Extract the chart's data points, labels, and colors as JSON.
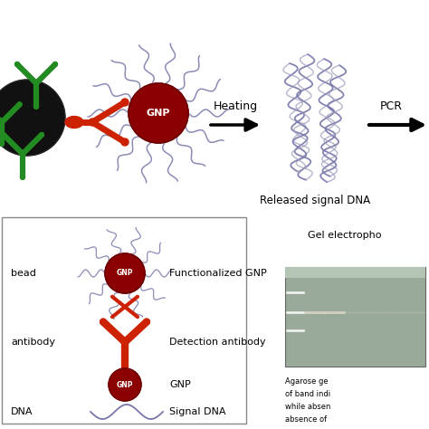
{
  "bg_color": "#ffffff",
  "heating_label": "Heating",
  "pcr_label": "PCR",
  "released_dna_label": "Released signal DNA",
  "gel_label": "Gel electropho",
  "agarose_lines": [
    "Agarose ge",
    "of band indi",
    "while absen",
    "absence of"
  ],
  "legend_left_labels": [
    "bead",
    "antibody",
    "",
    "DNA"
  ],
  "legend_right_labels": [
    "Functionalized GNP",
    "Detection antibody",
    "GNP",
    "Signal DNA"
  ],
  "gnp_color": "#8b0000",
  "gnp_dark": "#6b0000",
  "antibody_color": "#cc2200",
  "dna_color": "#7777aa",
  "dna_color2": "#9999bb",
  "magbead_color": "#111111",
  "green_color": "#228B22",
  "arrow_color": "#111111"
}
